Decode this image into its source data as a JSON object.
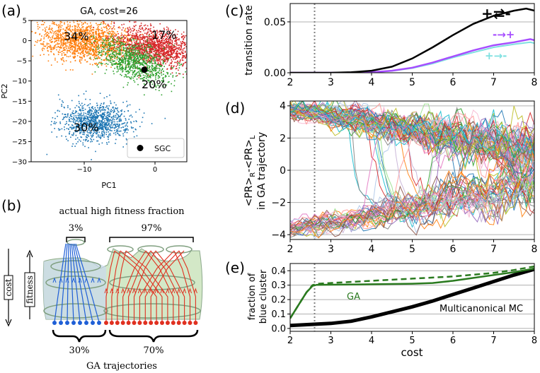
{
  "panel_labels": {
    "a": "(a)",
    "b": "(b)",
    "c": "(c)",
    "d": "(d)",
    "e": "(e)"
  },
  "colors": {
    "orange": "#ff7f0e",
    "red": "#d62728",
    "green": "#2ca02c",
    "blue": "#1f77b4",
    "black": "#000000",
    "purple": "#a64dff",
    "cyan": "#7fe0e0",
    "darkgreen": "#2a7a1f",
    "grid": "#b0b0b0"
  },
  "chart_data": [
    {
      "id": "a",
      "type": "scatter",
      "title": "GA, cost=26",
      "xlabel": "PC1",
      "ylabel": "PC2",
      "xlim": [
        -17.5,
        4.5
      ],
      "ylim": [
        -30,
        5
      ],
      "xticks": [
        -10,
        0
      ],
      "yticks": [
        5,
        0,
        -5,
        -10,
        -15,
        -20,
        -25,
        -30
      ],
      "xtick_labels": [
        "−10",
        "0"
      ],
      "ytick_labels": [
        "5",
        "0",
        "−5",
        "−10",
        "−15",
        "−20",
        "−25",
        "−30"
      ],
      "clusters": [
        {
          "name": "orange",
          "label": "34%",
          "center": [
            -10,
            0
          ],
          "spread": [
            3.2,
            2.8
          ]
        },
        {
          "name": "red",
          "label": "17%",
          "center": [
            0,
            -1.5
          ],
          "spread": [
            2.5,
            2.3
          ]
        },
        {
          "name": "green",
          "label": "20%",
          "center": [
            -3,
            -5
          ],
          "spread": [
            2.5,
            3.0
          ]
        },
        {
          "name": "blue",
          "label": "30%",
          "center": [
            -8.5,
            -20
          ],
          "spread": [
            2.3,
            2.3
          ]
        }
      ],
      "sgc_point": [
        -1.5,
        -7.2
      ],
      "legend": {
        "label": "SGC",
        "placement": "lower-right"
      }
    },
    {
      "id": "c",
      "type": "line",
      "ylabel": "transition rate",
      "xlim": [
        2,
        8
      ],
      "ylim": [
        0,
        0.068
      ],
      "xticks": [
        2,
        3,
        4,
        5,
        6,
        7,
        8
      ],
      "yticks": [
        0.0,
        0.05
      ],
      "ytick_labels": [
        "0.00",
        "0.05"
      ],
      "vline": 2.6,
      "series": [
        {
          "name": "+⇄-",
          "color": "black",
          "x": [
            2,
            2.6,
            3,
            3.5,
            4,
            4.5,
            5,
            5.5,
            6,
            6.5,
            7,
            7.5,
            7.8,
            8
          ],
          "y": [
            0,
            0,
            0,
            0.0005,
            0.002,
            0.006,
            0.014,
            0.025,
            0.037,
            0.048,
            0.056,
            0.061,
            0.063,
            0.061
          ]
        },
        {
          "name": "-→+",
          "color": "purple",
          "x": [
            2,
            3,
            4,
            4.5,
            5,
            5.5,
            6,
            6.5,
            7,
            7.5,
            7.9,
            8
          ],
          "y": [
            0,
            0,
            0.0005,
            0.002,
            0.005,
            0.01,
            0.016,
            0.022,
            0.027,
            0.03,
            0.033,
            0.032
          ]
        },
        {
          "name": "+→-",
          "color": "cyan",
          "x": [
            2,
            3,
            4,
            4.5,
            5,
            5.5,
            6,
            6.5,
            7,
            7.5,
            7.9,
            8
          ],
          "y": [
            0,
            0,
            0.0005,
            0.0018,
            0.0045,
            0.009,
            0.015,
            0.02,
            0.025,
            0.028,
            0.03,
            0.029
          ]
        }
      ]
    },
    {
      "id": "d",
      "type": "line",
      "ylabel_line1": "<PR>",
      "ylabel_sub1": "R",
      "ylabel_mid": "-<PR>",
      "ylabel_sub2": "L",
      "ylabel_line2": "in GA trajectory",
      "xlim": [
        2,
        8
      ],
      "ylim": [
        -4.3,
        4.3
      ],
      "xticks": [
        2,
        3,
        4,
        5,
        6,
        7,
        8
      ],
      "yticks": [
        4,
        2,
        0,
        -2,
        -4
      ],
      "ytick_labels": [
        "4",
        "2",
        "0",
        "−2",
        "−4"
      ],
      "vline": 2.6,
      "trajectory_count": 100,
      "upper_band": {
        "start": 3.7,
        "end": 1.2
      },
      "lower_band": {
        "start": -3.6,
        "end": -0.8
      },
      "switch_fraction": 0.3
    },
    {
      "id": "e",
      "type": "line",
      "xlabel": "cost",
      "ylabel_line1": "fraction of",
      "ylabel_line2": "blue cluster",
      "xlim": [
        2,
        8
      ],
      "ylim": [
        -0.02,
        0.45
      ],
      "xticks": [
        2,
        3,
        4,
        5,
        6,
        7,
        8
      ],
      "yticks": [
        0.0,
        0.1,
        0.2,
        0.3,
        0.4
      ],
      "ytick_labels": [
        "0.0",
        "0.1",
        "0.2",
        "0.3",
        "0.4"
      ],
      "vline": 2.6,
      "series": [
        {
          "name": "GA",
          "color": "green",
          "style": "solid",
          "x": [
            2,
            2.2,
            2.4,
            2.55,
            2.65,
            3,
            4,
            5,
            5.5,
            6,
            6.5,
            7,
            7.5,
            8
          ],
          "y": [
            0.07,
            0.16,
            0.25,
            0.295,
            0.302,
            0.303,
            0.306,
            0.31,
            0.315,
            0.33,
            0.35,
            0.37,
            0.39,
            0.415
          ]
        },
        {
          "name": "GA dashed",
          "color": "green",
          "style": "dashed",
          "x": [
            2,
            2.2,
            2.4,
            2.55,
            2.7,
            3,
            4,
            5,
            6,
            7,
            7.5,
            8
          ],
          "y": [
            0.07,
            0.16,
            0.25,
            0.3,
            0.31,
            0.315,
            0.33,
            0.345,
            0.36,
            0.385,
            0.405,
            0.43
          ]
        },
        {
          "name": "Multicanonical MC",
          "color": "black",
          "style": "thick",
          "x": [
            2,
            3,
            3.5,
            4,
            4.5,
            5,
            5.5,
            6,
            6.5,
            7,
            7.5,
            8
          ],
          "y": [
            0.02,
            0.035,
            0.05,
            0.08,
            0.115,
            0.15,
            0.19,
            0.235,
            0.28,
            0.325,
            0.37,
            0.41
          ]
        }
      ],
      "labels": {
        "ga": "GA",
        "mc": "Multicanonical MC"
      }
    }
  ],
  "panel_b": {
    "title": "actual high fitness fraction",
    "top_left": "3%",
    "top_right": "97%",
    "bottom_left": "30%",
    "bottom_right": "70%",
    "bottom_title": "GA trajectories",
    "axis_cost": "cost",
    "axis_fitness": "fitness"
  }
}
